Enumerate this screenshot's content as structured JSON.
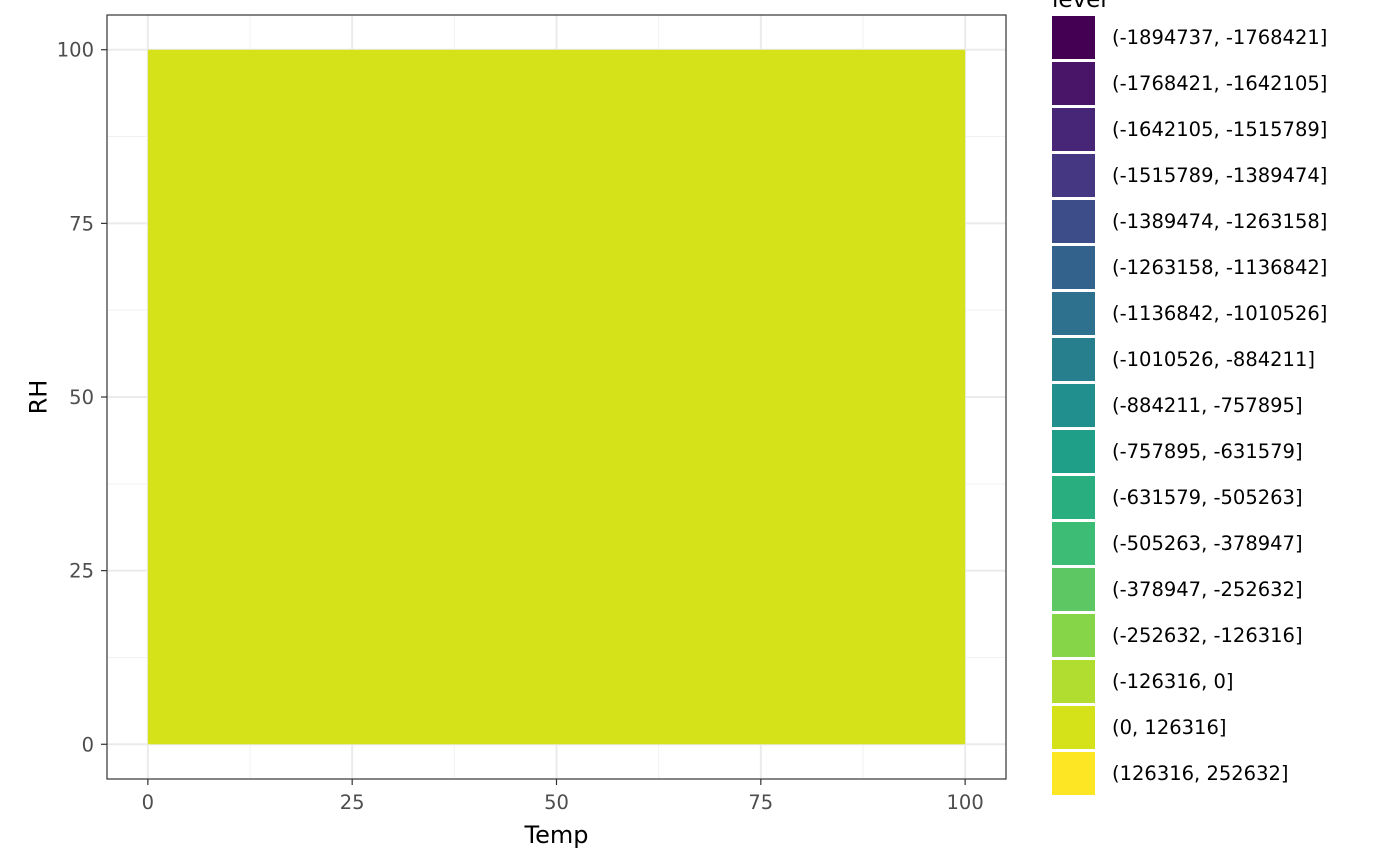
{
  "chart_data": {
    "type": "area",
    "xlabel": "Temp",
    "ylabel": "RH",
    "x_ticks": [
      0,
      25,
      50,
      75,
      100
    ],
    "y_ticks": [
      0,
      25,
      50,
      75,
      100
    ],
    "xlim": [
      -5,
      105
    ],
    "ylim": [
      -5,
      105
    ],
    "grid": true,
    "legend_position": "right",
    "region": {
      "x": [
        0,
        100
      ],
      "y": [
        0,
        100
      ],
      "level": "(0, 126316]"
    },
    "legend": {
      "title": "level",
      "entries": [
        {
          "label": "(-1894737, -1768421]",
          "color": "#440154"
        },
        {
          "label": "(-1768421, -1642105]",
          "color": "#481568"
        },
        {
          "label": "(-1642105, -1515789]",
          "color": "#482677"
        },
        {
          "label": "(-1515789, -1389474]",
          "color": "#453781"
        },
        {
          "label": "(-1389474, -1263158]",
          "color": "#3D4D8A"
        },
        {
          "label": "(-1263158, -1136842]",
          "color": "#33638D"
        },
        {
          "label": "(-1136842, -1010526]",
          "color": "#2D718E"
        },
        {
          "label": "(-1010526, -884211]",
          "color": "#277F8E"
        },
        {
          "label": "(-884211, -757895]",
          "color": "#218F8D"
        },
        {
          "label": "(-757895, -631579]",
          "color": "#1F9F88"
        },
        {
          "label": "(-631579, -505263]",
          "color": "#29AF7F"
        },
        {
          "label": "(-505263, -378947]",
          "color": "#3CBC75"
        },
        {
          "label": "(-378947, -252632]",
          "color": "#5DC863"
        },
        {
          "label": "(-252632, -126316]",
          "color": "#86D549"
        },
        {
          "label": "(-126316, 0]",
          "color": "#B0DD2F"
        },
        {
          "label": "(0, 126316]",
          "color": "#D5E21A"
        },
        {
          "label": "(126316, 252632]",
          "color": "#FDE725"
        }
      ]
    }
  }
}
